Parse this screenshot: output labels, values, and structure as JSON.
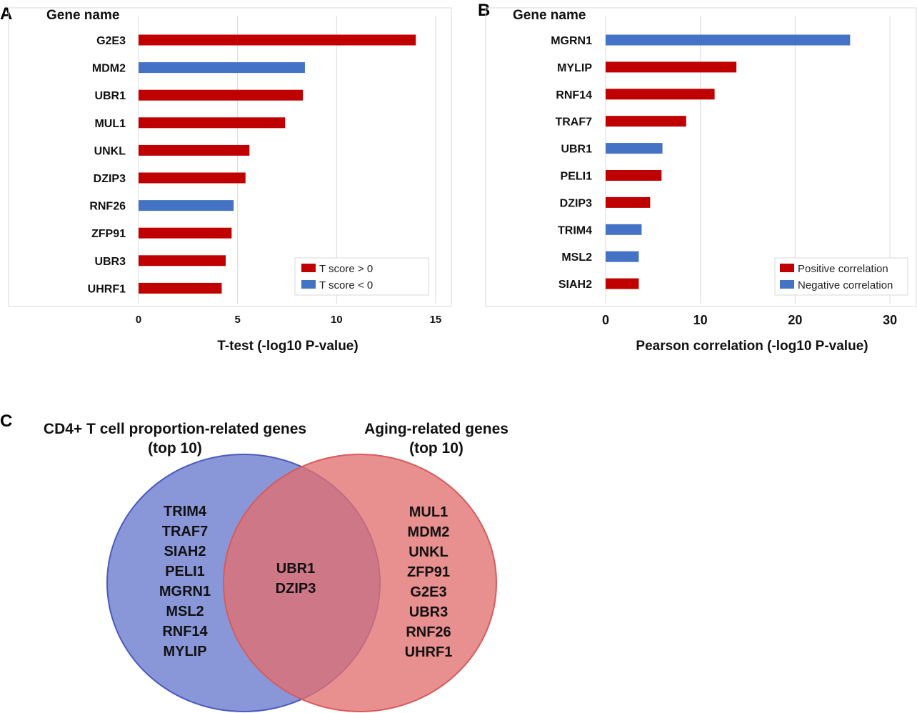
{
  "colors": {
    "positive": "#C00000",
    "negative": "#4472C4",
    "venn_left": "#6F7FCF",
    "venn_right": "#E26F70"
  },
  "panel_letters": {
    "a": "A",
    "b": "B",
    "c": "C"
  },
  "chart_data": [
    {
      "type": "bar",
      "orientation": "horizontal",
      "panel": "A",
      "category_header": "Gene name",
      "xlabel": "T-test (-log10 P-value)",
      "xlim": [
        0,
        15
      ],
      "xticks": [
        0,
        5,
        10,
        15
      ],
      "grid": true,
      "legend_position": "bottom-right",
      "legend": [
        {
          "label": "T score > 0",
          "color": "#C00000"
        },
        {
          "label": "T score < 0",
          "color": "#4472C4"
        }
      ],
      "categories": [
        "G2E3",
        "MDM2",
        "UBR1",
        "MUL1",
        "UNKL",
        "DZIP3",
        "RNF26",
        "ZFP91",
        "UBR3",
        "UHRF1"
      ],
      "values": [
        14.0,
        8.4,
        8.3,
        7.4,
        5.6,
        5.4,
        4.8,
        4.7,
        4.4,
        4.2
      ],
      "series_index": [
        0,
        1,
        0,
        0,
        0,
        0,
        1,
        0,
        0,
        0
      ]
    },
    {
      "type": "bar",
      "orientation": "horizontal",
      "panel": "B",
      "category_header": "Gene name",
      "xlabel": "Pearson correlation (-log10 P-value)",
      "xlim": [
        0,
        32
      ],
      "xticks": [
        0,
        10,
        20,
        30
      ],
      "grid": true,
      "legend_position": "bottom-right",
      "legend": [
        {
          "label": "Positive correlation",
          "color": "#C00000"
        },
        {
          "label": "Negative correlation",
          "color": "#4472C4"
        }
      ],
      "categories": [
        "MGRN1",
        "MYLIP",
        "RNF14",
        "TRAF7",
        "UBR1",
        "PELI1",
        "DZIP3",
        "TRIM4",
        "MSL2",
        "SIAH2"
      ],
      "values": [
        25.8,
        13.8,
        11.5,
        8.5,
        6.0,
        5.9,
        4.7,
        3.8,
        3.5,
        3.5
      ],
      "series_index": [
        1,
        0,
        0,
        0,
        1,
        0,
        0,
        1,
        1,
        0
      ]
    }
  ],
  "venn": {
    "left_title": [
      "CD4+ T cell proportion-related genes",
      "(top 10)"
    ],
    "right_title": [
      "Aging-related genes",
      "(top 10)"
    ],
    "left_only": [
      "TRIM4",
      "TRAF7",
      "SIAH2",
      "PELI1",
      "MGRN1",
      "MSL2",
      "RNF14",
      "MYLIP"
    ],
    "overlap": [
      "UBR1",
      "DZIP3"
    ],
    "right_only": [
      "MUL1",
      "MDM2",
      "UNKL",
      "ZFP91",
      "G2E3",
      "UBR3",
      "RNF26",
      "UHRF1"
    ]
  }
}
